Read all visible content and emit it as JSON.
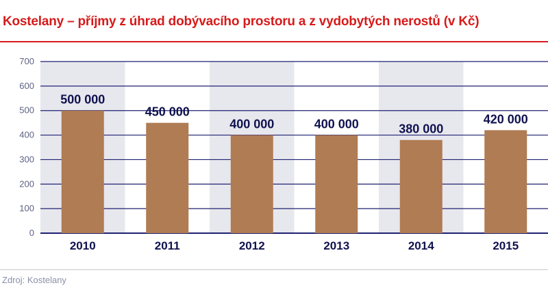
{
  "title": "Kostelany – příjmy z úhrad dobývacího prostoru a z vydobytých nerostů (v Kč)",
  "source": "Zdroj: Kostelany",
  "colors": {
    "title": "#d71a1a",
    "bar": "#b07c54",
    "band": "#e7e7ee",
    "gridline": "#1e2170",
    "text": "#10124f"
  },
  "chart_data": {
    "type": "bar",
    "categories": [
      "2010",
      "2011",
      "2012",
      "2013",
      "2014",
      "2015"
    ],
    "values": [
      500,
      450,
      400,
      400,
      380,
      420
    ],
    "data_labels": [
      "500 000",
      "450 000",
      "400 000",
      "400 000",
      "380 000",
      "420 000"
    ],
    "yticks": [
      "0",
      "100",
      "200",
      "300",
      "400",
      "500",
      "600",
      "700"
    ],
    "ylim": [
      0,
      700
    ],
    "grid": true,
    "legend": "none"
  }
}
